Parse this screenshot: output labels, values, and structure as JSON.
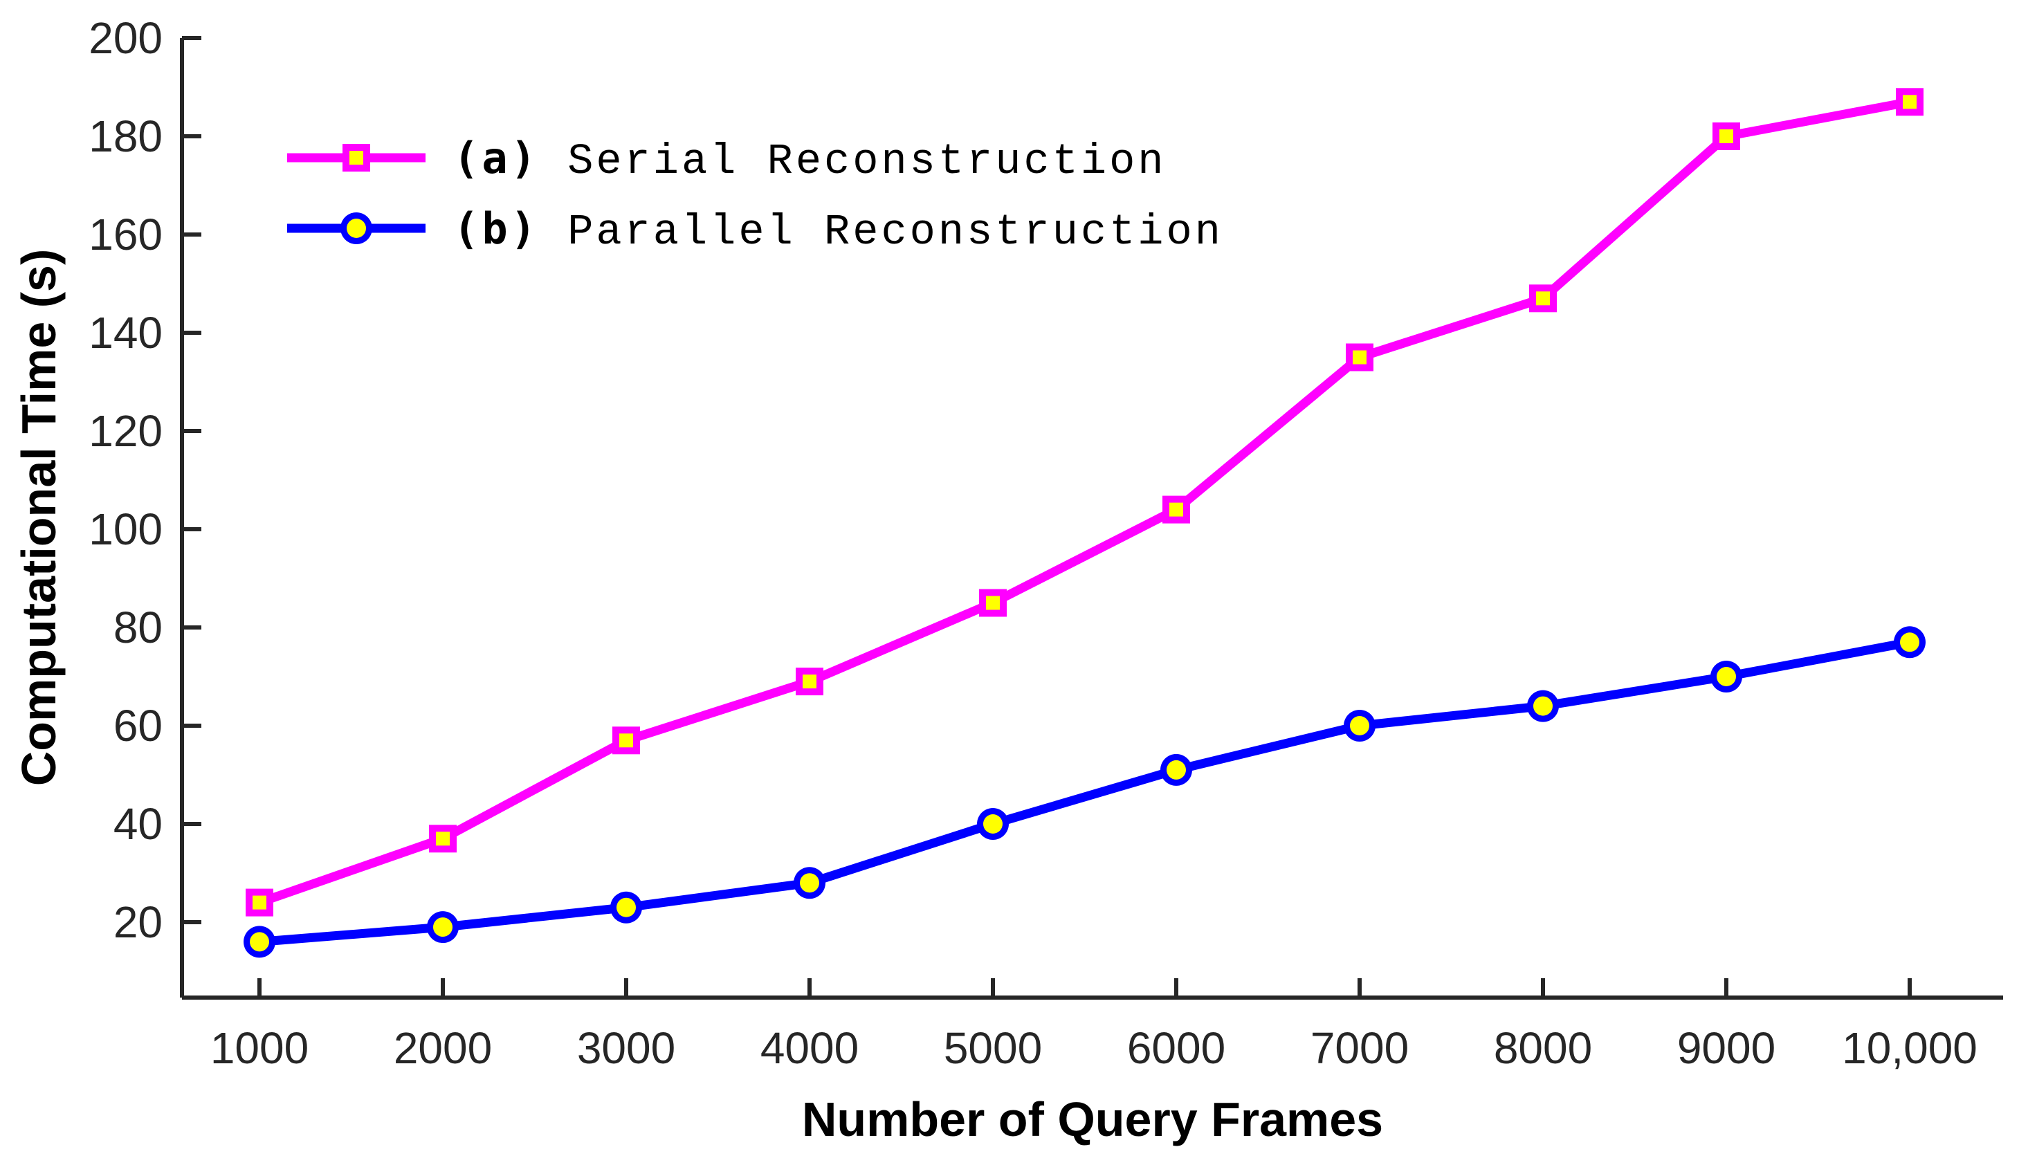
{
  "figure": {
    "background": "#FFFFFF",
    "axis_color": "#262626",
    "text_color": "#000000",
    "marker_fill": "#FFFF00"
  },
  "chart_data": {
    "type": "line",
    "title": "",
    "xlabel": "Number of Query Frames",
    "ylabel": "Computational Time (s)",
    "x": [
      1000,
      2000,
      3000,
      4000,
      5000,
      6000,
      7000,
      8000,
      9000,
      10000
    ],
    "x_tick_labels": [
      "1000",
      "2000",
      "3000",
      "4000",
      "5000",
      "6000",
      "7000",
      "8000",
      "9000",
      "10,000"
    ],
    "y_ticks": [
      20,
      40,
      60,
      80,
      100,
      120,
      140,
      160,
      180,
      200
    ],
    "y_tick_labels": [
      "20",
      "40",
      "60",
      "80",
      "100",
      "120",
      "140",
      "160",
      "180",
      "200"
    ],
    "xlim": [
      580,
      10510
    ],
    "ylim": [
      5,
      200
    ],
    "grid": false,
    "legend_position": "top-left",
    "series": [
      {
        "prefix": "(a)",
        "label": "Serial Reconstruction",
        "color": "#FF00FF",
        "marker": "square",
        "marker_fill": "#FFFF00",
        "values": [
          24,
          37,
          57,
          69,
          85,
          104,
          135,
          147,
          180,
          187
        ]
      },
      {
        "prefix": "(b)",
        "label": "Parallel Reconstruction",
        "color": "#0000FF",
        "marker": "circle",
        "marker_fill": "#FFFF00",
        "values": [
          16,
          19,
          23,
          28,
          40,
          51,
          60,
          64,
          70,
          77
        ]
      }
    ]
  }
}
